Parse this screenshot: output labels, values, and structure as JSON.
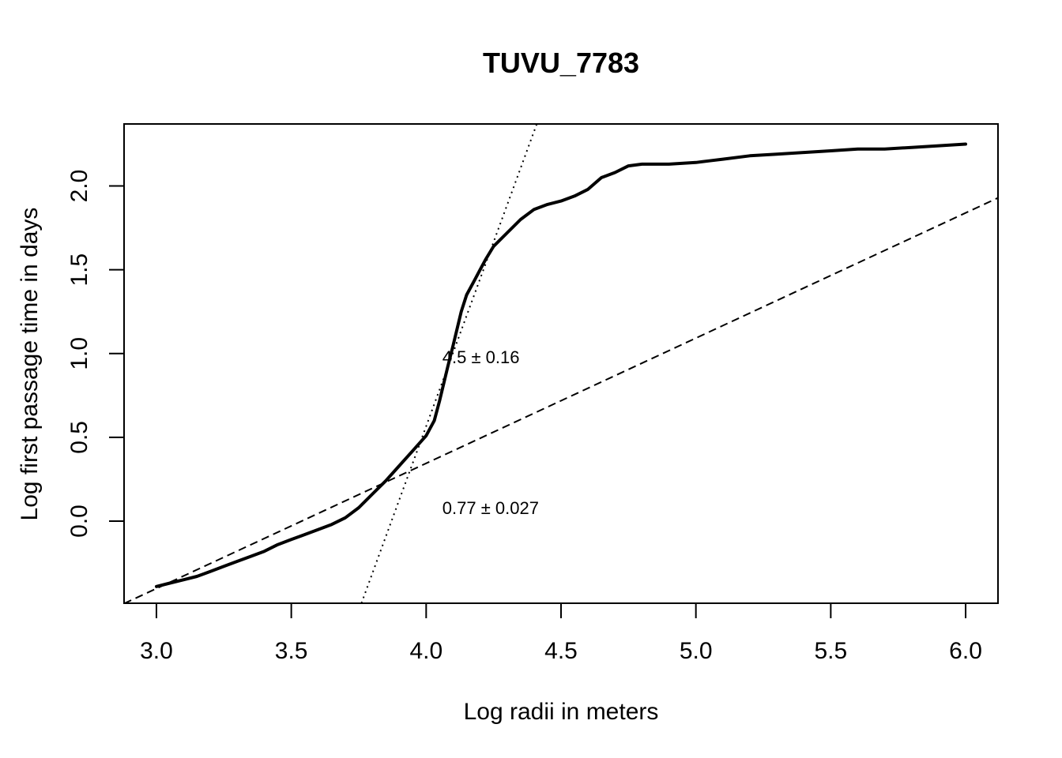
{
  "chart_data": {
    "type": "line",
    "title": "TUVU_7783",
    "xlabel": "Log radii in meters",
    "ylabel": "Log first passage time in days",
    "xlim": [
      2.88,
      6.12
    ],
    "ylim": [
      -0.49,
      2.37
    ],
    "x_ticks": [
      "3.0",
      "3.5",
      "4.0",
      "4.5",
      "5.0",
      "5.5",
      "6.0"
    ],
    "y_ticks": [
      "0.0",
      "0.5",
      "1.0",
      "1.5",
      "2.0"
    ],
    "grid": false,
    "legend": "none",
    "series": [
      {
        "style": "solid",
        "x": [
          3.0,
          3.05,
          3.1,
          3.15,
          3.2,
          3.25,
          3.3,
          3.35,
          3.4,
          3.45,
          3.5,
          3.55,
          3.6,
          3.65,
          3.7,
          3.75,
          3.8,
          3.85,
          3.9,
          3.95,
          4.0,
          4.03,
          4.05,
          4.08,
          4.1,
          4.13,
          4.15,
          4.18,
          4.2,
          4.22,
          4.25,
          4.3,
          4.35,
          4.4,
          4.45,
          4.5,
          4.55,
          4.6,
          4.65,
          4.7,
          4.75,
          4.8,
          4.9,
          5.0,
          5.05,
          5.1,
          5.2,
          5.3,
          5.4,
          5.5,
          5.6,
          5.7,
          5.8,
          5.9,
          6.0
        ],
        "y": [
          -0.39,
          -0.37,
          -0.35,
          -0.33,
          -0.3,
          -0.27,
          -0.24,
          -0.21,
          -0.18,
          -0.14,
          -0.11,
          -0.08,
          -0.05,
          -0.02,
          0.02,
          0.08,
          0.16,
          0.24,
          0.33,
          0.42,
          0.51,
          0.6,
          0.72,
          0.92,
          1.05,
          1.25,
          1.35,
          1.44,
          1.5,
          1.56,
          1.64,
          1.72,
          1.8,
          1.86,
          1.89,
          1.91,
          1.94,
          1.98,
          2.05,
          2.08,
          2.12,
          2.13,
          2.13,
          2.14,
          2.15,
          2.16,
          2.18,
          2.19,
          2.2,
          2.21,
          2.22,
          2.22,
          2.23,
          2.24,
          2.25
        ]
      },
      {
        "style": "dashed",
        "x": [
          2.88,
          6.12
        ],
        "y": [
          -0.492,
          1.929
        ]
      },
      {
        "style": "dotted",
        "x": [
          3.76,
          4.41
        ],
        "y": [
          -0.49,
          2.37
        ]
      }
    ],
    "annotations": [
      {
        "text": "4.5 ± 0.16",
        "x": 4.06,
        "y": 0.98
      },
      {
        "text": "0.77 ± 0.027",
        "x": 4.06,
        "y": 0.08
      }
    ]
  }
}
